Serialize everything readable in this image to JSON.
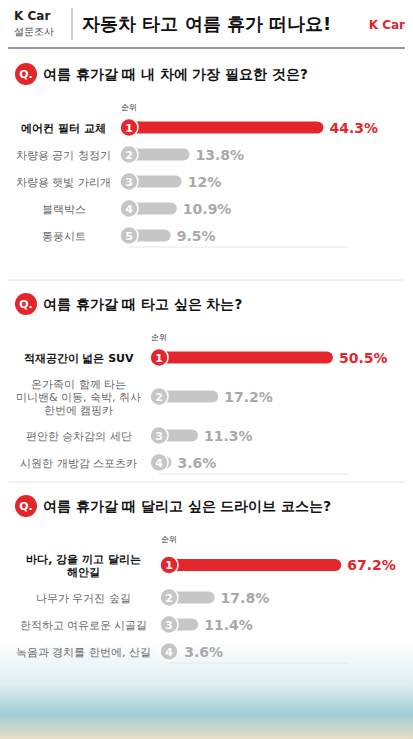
{
  "header": {
    "brand": "K Car",
    "survey": "설문조사",
    "title": "자동차 타고 여름 휴가 떠나요!",
    "logo": "K Car"
  },
  "question_mark": "Q.",
  "rank_label": "순위",
  "chart_data": [
    {
      "type": "bar",
      "orientation": "horizontal",
      "title": "여름 휴가갈 때 내 차에 가장 필요한 것은?",
      "categories": [
        "에어컨 필터 교체",
        "차량용 공기 청정기",
        "차량용 햇빛 가리개",
        "블랙박스",
        "통풍시트"
      ],
      "values": [
        44.3,
        13.8,
        12,
        10.9,
        9.5
      ],
      "value_labels": [
        "44.3%",
        "13.8%",
        "12%",
        "10.9%",
        "9.5%"
      ],
      "ranks": [
        1,
        2,
        3,
        4,
        5
      ],
      "colors": [
        "#e3262c",
        "#c6c6c6",
        "#c6c6c6",
        "#c6c6c6",
        "#c6c6c6"
      ],
      "xlim": [
        0,
        50
      ],
      "data_labels": true,
      "tick_labels": false
    },
    {
      "type": "bar",
      "orientation": "horizontal",
      "title": "여름 휴가갈 때 타고 싶은 차는?",
      "categories": [
        "적재공간이 넓은 SUV",
        "온가족이 함께 타는 미니밴& 이동, 숙박, 취사 한번에 캠핑카",
        "편안한 승차감의 세단",
        "시원한 개방감 스포츠카"
      ],
      "values": [
        50.5,
        17.2,
        11.3,
        3.6
      ],
      "value_labels": [
        "50.5%",
        "17.2%",
        "11.3%",
        "3.6%"
      ],
      "ranks": [
        1,
        2,
        3,
        4
      ],
      "colors": [
        "#e3262c",
        "#c6c6c6",
        "#c6c6c6",
        "#c6c6c6"
      ],
      "xlim": [
        0,
        55
      ],
      "data_labels": true,
      "tick_labels": false
    },
    {
      "type": "bar",
      "orientation": "horizontal",
      "title": "여름 휴가갈 때 달리고 싶은 드라이브 코스는?",
      "categories": [
        "바다, 강을 끼고 달리는 해안길",
        "나무가 우거진 숲길",
        "한적하고 여유로운 시골길",
        "녹음과 경치를 한번에, 산길"
      ],
      "values": [
        67.2,
        17.8,
        11.4,
        3.6
      ],
      "value_labels": [
        "67.2%",
        "17.8%",
        "11.4%",
        "3.6%"
      ],
      "ranks": [
        1,
        2,
        3,
        4
      ],
      "colors": [
        "#e3262c",
        "#c6c6c6",
        "#c6c6c6",
        "#c6c6c6"
      ],
      "xlim": [
        0,
        70
      ],
      "data_labels": true,
      "tick_labels": false
    }
  ]
}
